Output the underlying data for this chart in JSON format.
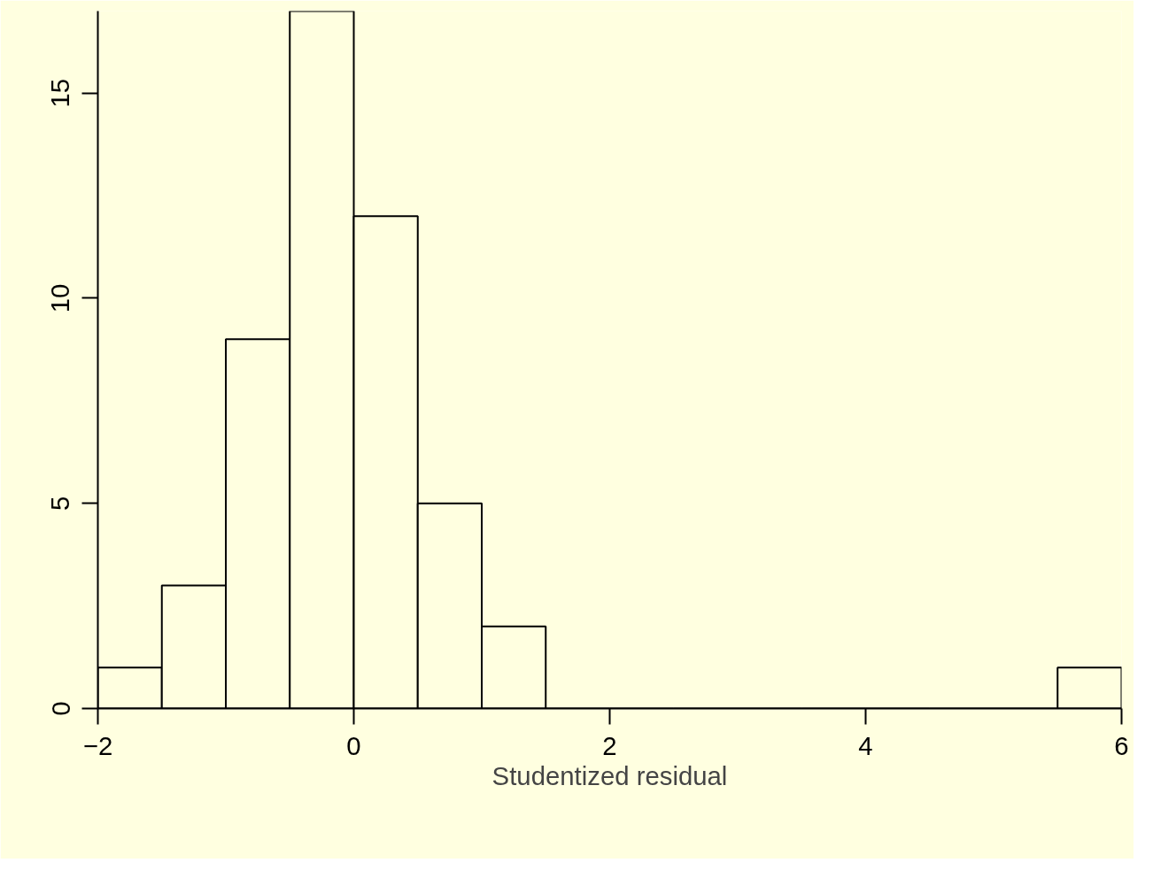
{
  "chart_data": {
    "type": "histogram",
    "xlabel": "Studentized residual",
    "bins": [
      -2,
      -1.5,
      -1,
      -0.5,
      0,
      0.5,
      1,
      1.5,
      2,
      2.5,
      3,
      3.5,
      4,
      4.5,
      5,
      5.5,
      6
    ],
    "values": [
      1,
      3,
      9,
      17,
      12,
      5,
      2,
      0,
      0,
      0,
      0,
      0,
      0,
      0,
      0,
      1
    ],
    "color": "#ffffe0",
    "xlim": [
      -2,
      6
    ],
    "ylim": [
      0,
      17
    ],
    "xticks": [
      -2,
      0,
      2,
      4,
      6
    ],
    "yticks": [
      0,
      5,
      10,
      15
    ]
  }
}
